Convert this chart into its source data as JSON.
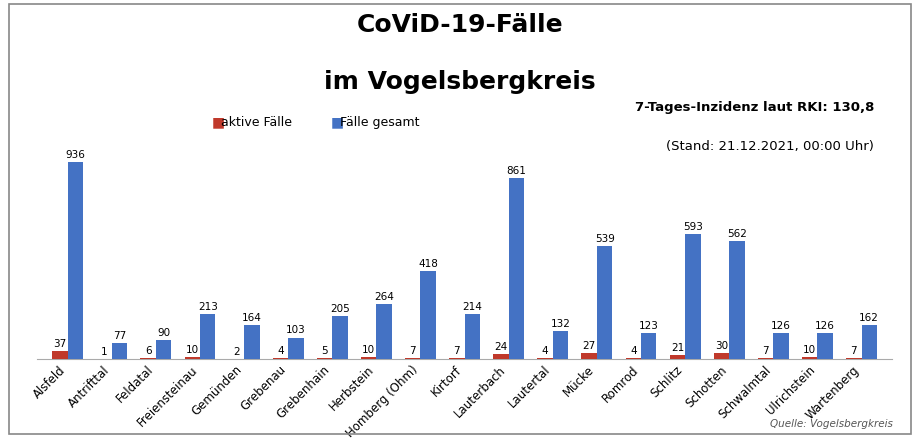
{
  "title_line1": "CoViD-19-Fälle",
  "title_line2": "im Vogelsbergkreis",
  "annotation_line1": "7-Tages-Inzidenz laut RKI: 130,8",
  "annotation_line2": "(Stand: 21.12.2021, 00:00 Uhr)",
  "source": "Quelle: Vogelsbergkreis",
  "legend_active": "aktive Fälle",
  "legend_total": "Fälle gesamt",
  "categories": [
    "Alsfeld",
    "Antrifttal",
    "Feldatal",
    "Freiensteinau",
    "Gemünden",
    "Grebenau",
    "Grebenhain",
    "Herbstein",
    "Homberg (Ohm)",
    "Kirtorf",
    "Lauterbach",
    "Lautertal",
    "Mücke",
    "Romrod",
    "Schlitz",
    "Schotten",
    "Schwalmtal",
    "Ulrichstein",
    "Wartenberg"
  ],
  "active": [
    37,
    1,
    6,
    10,
    2,
    4,
    5,
    10,
    7,
    7,
    24,
    4,
    27,
    4,
    21,
    30,
    7,
    10,
    7
  ],
  "total": [
    936,
    77,
    90,
    213,
    164,
    103,
    205,
    264,
    418,
    214,
    861,
    132,
    539,
    123,
    593,
    562,
    126,
    126,
    162
  ],
  "bar_color_active": "#c0392b",
  "bar_color_total": "#4472c4",
  "background_color": "#ffffff",
  "bar_width": 0.35,
  "ylim": [
    0,
    1000
  ],
  "title_fontsize": 18,
  "label_fontsize": 7.5,
  "tick_fontsize": 8.5,
  "annotation_fontsize": 9.5,
  "legend_fontsize": 9
}
